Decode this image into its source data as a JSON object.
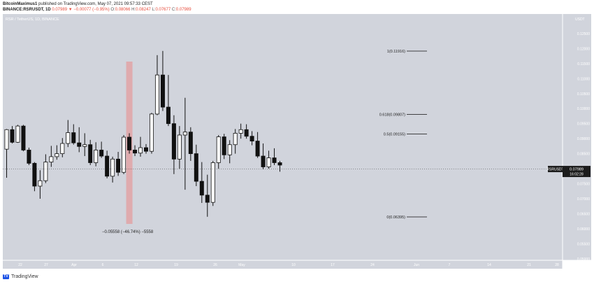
{
  "header": {
    "publisher": "BitcoinMaximus1",
    "published_text": "published on TradingView.com, May 07, 2021 09:57:33 CEST",
    "symbol_line": "BINANCE:RSRUSDT, 1D",
    "last_price": "0.07989",
    "change_text": "▼ −0.00077 (−0.95%)",
    "o_label": "O:",
    "o_value": "0.08066",
    "h_label": "H:",
    "h_value": "0.08247",
    "l_label": "L:",
    "l_value": "0.07677",
    "c_label": "C:",
    "c_value": "0.07989"
  },
  "footer": {
    "logo_text": "TV",
    "label": "TradingView"
  },
  "chart_data": {
    "type": "candlestick",
    "pane_title": "RSR / TetherUS, 1D, BINANCE",
    "currency_label": "USDT",
    "price_axis_ticks": [
      "0.12500",
      "0.12000",
      "0.11500",
      "0.11000",
      "0.10500",
      "0.10000",
      "0.09500",
      "0.09000",
      "0.08500",
      "0.08000",
      "0.07500",
      "0.07000",
      "0.06500",
      "0.06000",
      "0.05500",
      "0.05000"
    ],
    "ylim": [
      0.0495,
      0.1315
    ],
    "time_axis_ticks": [
      "22",
      "27",
      "Apr",
      "6",
      "12",
      "19",
      "26",
      "May",
      "10",
      "17",
      "24",
      "Jun",
      "7",
      "14",
      "21",
      "28"
    ],
    "grid": false,
    "legend": "none",
    "candles": [
      {
        "o": 0.0865,
        "h": 0.0932,
        "l": 0.077,
        "c": 0.093
      },
      {
        "o": 0.093,
        "h": 0.0942,
        "l": 0.0884,
        "c": 0.0888
      },
      {
        "o": 0.0888,
        "h": 0.0946,
        "l": 0.0886,
        "c": 0.0942
      },
      {
        "o": 0.0942,
        "h": 0.0946,
        "l": 0.0858,
        "c": 0.0862
      },
      {
        "o": 0.0862,
        "h": 0.087,
        "l": 0.0812,
        "c": 0.0818
      },
      {
        "o": 0.0818,
        "h": 0.0822,
        "l": 0.0725,
        "c": 0.0742
      },
      {
        "o": 0.0742,
        "h": 0.0795,
        "l": 0.07,
        "c": 0.076
      },
      {
        "o": 0.076,
        "h": 0.0848,
        "l": 0.0752,
        "c": 0.0822
      },
      {
        "o": 0.0822,
        "h": 0.0876,
        "l": 0.0806,
        "c": 0.084
      },
      {
        "o": 0.084,
        "h": 0.0878,
        "l": 0.083,
        "c": 0.085
      },
      {
        "o": 0.085,
        "h": 0.0902,
        "l": 0.0838,
        "c": 0.0884
      },
      {
        "o": 0.0884,
        "h": 0.0962,
        "l": 0.0872,
        "c": 0.092
      },
      {
        "o": 0.092,
        "h": 0.0948,
        "l": 0.088,
        "c": 0.0886
      },
      {
        "o": 0.0886,
        "h": 0.0938,
        "l": 0.0855,
        "c": 0.0874
      },
      {
        "o": 0.0874,
        "h": 0.0918,
        "l": 0.0842,
        "c": 0.088
      },
      {
        "o": 0.088,
        "h": 0.0896,
        "l": 0.0812,
        "c": 0.082
      },
      {
        "o": 0.082,
        "h": 0.0888,
        "l": 0.0808,
        "c": 0.0862
      },
      {
        "o": 0.0862,
        "h": 0.089,
        "l": 0.0836,
        "c": 0.0842
      },
      {
        "o": 0.0842,
        "h": 0.086,
        "l": 0.0768,
        "c": 0.0775
      },
      {
        "o": 0.0775,
        "h": 0.084,
        "l": 0.0754,
        "c": 0.0832
      },
      {
        "o": 0.0832,
        "h": 0.0856,
        "l": 0.0776,
        "c": 0.0788
      },
      {
        "o": 0.0788,
        "h": 0.0912,
        "l": 0.0782,
        "c": 0.0905
      },
      {
        "o": 0.0905,
        "h": 0.0918,
        "l": 0.085,
        "c": 0.0862
      },
      {
        "o": 0.0862,
        "h": 0.0878,
        "l": 0.0842,
        "c": 0.0852
      },
      {
        "o": 0.0852,
        "h": 0.0906,
        "l": 0.084,
        "c": 0.087
      },
      {
        "o": 0.087,
        "h": 0.0882,
        "l": 0.085,
        "c": 0.0858
      },
      {
        "o": 0.0858,
        "h": 0.0986,
        "l": 0.085,
        "c": 0.0982
      },
      {
        "o": 0.0982,
        "h": 0.1178,
        "l": 0.0978,
        "c": 0.1112
      },
      {
        "o": 0.1112,
        "h": 0.1192,
        "l": 0.0992,
        "c": 0.1005
      },
      {
        "o": 0.1005,
        "h": 0.1112,
        "l": 0.0942,
        "c": 0.095
      },
      {
        "o": 0.095,
        "h": 0.0978,
        "l": 0.0782,
        "c": 0.0832
      },
      {
        "o": 0.0832,
        "h": 0.0942,
        "l": 0.08,
        "c": 0.0912
      },
      {
        "o": 0.0912,
        "h": 0.1036,
        "l": 0.073,
        "c": 0.0922
      },
      {
        "o": 0.0922,
        "h": 0.0938,
        "l": 0.0826,
        "c": 0.085
      },
      {
        "o": 0.085,
        "h": 0.088,
        "l": 0.0742,
        "c": 0.0758
      },
      {
        "o": 0.0758,
        "h": 0.0822,
        "l": 0.0686,
        "c": 0.0712
      },
      {
        "o": 0.0712,
        "h": 0.078,
        "l": 0.064,
        "c": 0.0688
      },
      {
        "o": 0.0688,
        "h": 0.0826,
        "l": 0.0676,
        "c": 0.082
      },
      {
        "o": 0.082,
        "h": 0.0912,
        "l": 0.08,
        "c": 0.0906
      },
      {
        "o": 0.0906,
        "h": 0.0916,
        "l": 0.0832,
        "c": 0.0846
      },
      {
        "o": 0.0846,
        "h": 0.0895,
        "l": 0.0818,
        "c": 0.088
      },
      {
        "o": 0.088,
        "h": 0.0932,
        "l": 0.085,
        "c": 0.0918
      },
      {
        "o": 0.0918,
        "h": 0.095,
        "l": 0.09,
        "c": 0.093
      },
      {
        "o": 0.093,
        "h": 0.0948,
        "l": 0.09,
        "c": 0.0908
      },
      {
        "o": 0.0908,
        "h": 0.0925,
        "l": 0.0878,
        "c": 0.0892
      },
      {
        "o": 0.0892,
        "h": 0.0922,
        "l": 0.0836,
        "c": 0.0842
      },
      {
        "o": 0.0842,
        "h": 0.0884,
        "l": 0.0798,
        "c": 0.0806
      },
      {
        "o": 0.0806,
        "h": 0.086,
        "l": 0.08,
        "c": 0.0836
      },
      {
        "o": 0.0836,
        "h": 0.0868,
        "l": 0.0812,
        "c": 0.082
      },
      {
        "o": 0.082,
        "h": 0.0826,
        "l": 0.079,
        "c": 0.0812
      }
    ],
    "highlight_candle_index": 22,
    "fib_levels": [
      {
        "ratio": "1",
        "price": 0.11916,
        "label": "1(0.11916)"
      },
      {
        "ratio": "0.618",
        "price": 0.09807,
        "label": "0.618(0.09807)"
      },
      {
        "ratio": "0.5",
        "price": 0.09155,
        "label": "0.5(0.09155)"
      },
      {
        "ratio": "0",
        "price": 0.06395,
        "label": "0(0.06395)"
      }
    ],
    "measure_label": "−0.05558 (−46.74%) −5558",
    "price_tag": {
      "symbol": "RSRUSDT",
      "price": "0.07989",
      "countdown": "16:02:28",
      "value": 0.07989
    }
  }
}
